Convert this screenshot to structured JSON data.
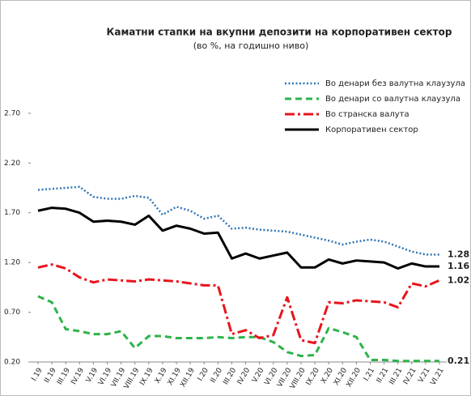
{
  "chart_data": {
    "type": "line",
    "title": "Каматни стапки на вкупни депозити на корпоративен сектор",
    "subtitle": "(во %, на годишно ниво)",
    "categories": [
      "I.19",
      "II.19",
      "III.19",
      "IV.19",
      "V.19",
      "VI.19",
      "VII.19",
      "VIII.19",
      "IX.19",
      "X.19",
      "XI.19",
      "XII.19",
      "I.20",
      "II.20",
      "III.20",
      "IV.20",
      "V.20",
      "VI.20",
      "VII.20",
      "VIII.20",
      "IX.20",
      "X.20",
      "XI.20",
      "XII.20",
      "I.21",
      "II.21",
      "III.21",
      "IV.21",
      "V.21",
      "VI.21"
    ],
    "series": [
      {
        "name": "Во денари без валутна клаузула",
        "color": "#2e75b6",
        "dash": "dotted",
        "values": [
          1.93,
          1.94,
          1.95,
          1.96,
          1.86,
          1.84,
          1.84,
          1.87,
          1.85,
          1.68,
          1.76,
          1.72,
          1.64,
          1.67,
          1.54,
          1.55,
          1.53,
          1.52,
          1.51,
          1.48,
          1.45,
          1.42,
          1.38,
          1.41,
          1.43,
          1.41,
          1.36,
          1.31,
          1.28,
          1.28
        ]
      },
      {
        "name": "Во денари со валутна клаузула",
        "color": "#2db34a",
        "dash": "dashed",
        "values": [
          0.86,
          0.8,
          0.53,
          0.51,
          0.48,
          0.48,
          0.51,
          0.34,
          0.46,
          0.46,
          0.44,
          0.44,
          0.44,
          0.45,
          0.44,
          0.45,
          0.45,
          0.4,
          0.3,
          0.26,
          0.27,
          0.54,
          0.5,
          0.45,
          0.22,
          0.22,
          0.21,
          0.21,
          0.21,
          0.21
        ]
      },
      {
        "name": "Во странска валута",
        "color": "#e8141c",
        "dash": "dashdot",
        "values": [
          1.15,
          1.18,
          1.14,
          1.05,
          1.0,
          1.03,
          1.02,
          1.01,
          1.03,
          1.02,
          1.01,
          0.99,
          0.97,
          0.97,
          0.48,
          0.52,
          0.44,
          0.47,
          0.85,
          0.42,
          0.39,
          0.8,
          0.79,
          0.82,
          0.81,
          0.8,
          0.75,
          0.99,
          0.96,
          1.02
        ]
      },
      {
        "name": "Корпоративен сектор",
        "color": "#000000",
        "dash": "solid",
        "values": [
          1.72,
          1.75,
          1.74,
          1.7,
          1.61,
          1.62,
          1.61,
          1.58,
          1.67,
          1.52,
          1.57,
          1.54,
          1.49,
          1.5,
          1.24,
          1.29,
          1.24,
          1.27,
          1.3,
          1.15,
          1.15,
          1.23,
          1.19,
          1.22,
          1.21,
          1.2,
          1.14,
          1.19,
          1.16,
          1.16
        ]
      }
    ],
    "ylim": [
      0.2,
      3.0
    ],
    "yticks": [
      {
        "value": 0.2,
        "label": "0.20"
      },
      {
        "value": 0.7,
        "label": "0.70"
      },
      {
        "value": 1.2,
        "label": "1.20"
      },
      {
        "value": 1.7,
        "label": "1.70"
      },
      {
        "value": 2.2,
        "label": "2.20"
      },
      {
        "value": 2.7,
        "label": "2.70"
      }
    ],
    "label_last": true,
    "legend": "upper right"
  }
}
